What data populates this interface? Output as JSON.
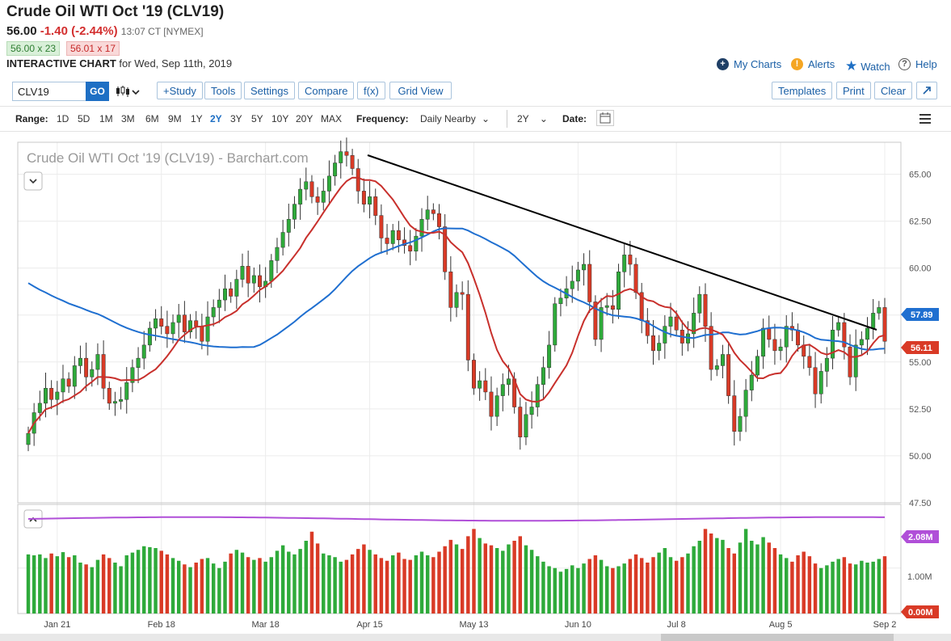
{
  "header": {
    "title": "Crude Oil WTI Oct '19 (CLV19)",
    "last": "56.00",
    "change": "-1.40 (-2.44%)",
    "time": "13:07 CT [NYMEX]",
    "bid": "56.00 x 23",
    "ask": "56.01 x 17",
    "subtitle_bold": "INTERACTIVE CHART",
    "subtitle_rest": "for Wed, Sep 11th, 2019"
  },
  "links": {
    "my_charts": "My Charts",
    "alerts": "Alerts",
    "watch": "Watch",
    "help": "Help"
  },
  "toolbar": {
    "symbol": "CLV19",
    "go": "GO",
    "study": "+Study",
    "tools": "Tools",
    "settings": "Settings",
    "compare": "Compare",
    "fx": "f(x)",
    "grid_view": "Grid View",
    "templates": "Templates",
    "print": "Print",
    "clear": "Clear"
  },
  "rangebar": {
    "range_label": "Range:",
    "ranges": [
      "1D",
      "5D",
      "1M",
      "3M",
      "6M",
      "9M",
      "1Y",
      "2Y",
      "3Y",
      "5Y",
      "10Y",
      "20Y",
      "MAX"
    ],
    "active_range": "2Y",
    "frequency_label": "Frequency:",
    "frequency": "Daily Nearby",
    "period": "2Y",
    "date_label": "Date:"
  },
  "colors": {
    "up": "#2eaa3a",
    "down": "#d93a26",
    "ma_short": "#c8302c",
    "ma_long": "#1f6fd0",
    "volume_ma": "#b04fd8",
    "trendline": "#000000",
    "accent": "#1e6fc4"
  },
  "chart_data": {
    "type": "candlestick",
    "title": "Crude Oil WTI Oct '19 (CLV19) - Barchart.com",
    "price_ticks": [
      "65.00",
      "62.50",
      "60.00",
      "57.50",
      "55.00",
      "52.50",
      "50.00",
      "47.50"
    ],
    "price_range": [
      47.5,
      66.7
    ],
    "volume_ticks": [
      "1.00M"
    ],
    "volume_range": [
      0,
      2.4
    ],
    "date_labels": [
      "Jan 21",
      "Feb 18",
      "Mar 18",
      "Apr 15",
      "May 13",
      "Jun 10",
      "Jul 8",
      "Aug 5",
      "Sep 2"
    ],
    "last_price": "56.11",
    "ma_long_value": "57.89",
    "volume_ma_value": "2.08M",
    "volume_last": "0.00M",
    "closes": [
      51.2,
      52.3,
      52.8,
      53.6,
      53.0,
      53.4,
      54.1,
      53.7,
      54.8,
      55.2,
      54.2,
      54.6,
      55.4,
      53.6,
      52.8,
      52.9,
      53.0,
      53.9,
      54.7,
      55.2,
      55.9,
      56.8,
      57.3,
      56.9,
      56.5,
      57.1,
      57.5,
      56.6,
      57.2,
      56.9,
      56.1,
      57.4,
      57.9,
      58.3,
      58.9,
      58.5,
      59.4,
      60.1,
      59.2,
      59.6,
      59.0,
      59.3,
      60.4,
      61.1,
      61.9,
      62.6,
      63.4,
      64.2,
      64.6,
      63.8,
      63.5,
      64.1,
      64.9,
      65.6,
      66.2,
      66.0,
      65.3,
      64.1,
      63.4,
      63.8,
      62.8,
      61.6,
      61.3,
      62.0,
      61.5,
      61.2,
      60.9,
      61.7,
      62.6,
      63.1,
      62.9,
      62.2,
      59.8,
      57.9,
      58.7,
      58.6,
      55.1,
      53.6,
      54.0,
      53.4,
      52.1,
      53.2,
      53.8,
      54.1,
      52.6,
      51.0,
      52.2,
      52.6,
      53.8,
      54.7,
      55.9,
      58.1,
      58.4,
      58.9,
      59.3,
      59.9,
      60.2,
      58.2,
      56.2,
      57.9,
      58.0,
      57.8,
      59.8,
      60.7,
      60.2,
      58.7,
      57.2,
      56.4,
      55.6,
      56.0,
      56.9,
      57.4,
      56.7,
      56.0,
      56.5,
      57.6,
      58.6,
      56.9,
      54.6,
      54.8,
      55.4,
      53.2,
      51.3,
      52.1,
      53.5,
      54.3,
      55.3,
      56.8,
      56.2,
      55.6,
      55.8,
      56.9,
      56.7,
      55.9,
      55.3,
      54.7,
      53.3,
      54.5,
      55.2,
      56.7,
      57.1,
      55.8,
      54.2,
      55.9,
      56.2,
      56.8,
      57.6,
      57.9,
      56.1
    ],
    "volumes": [
      1.3,
      1.28,
      1.3,
      1.22,
      1.32,
      1.26,
      1.35,
      1.24,
      1.28,
      1.12,
      1.08,
      1.02,
      1.18,
      1.3,
      1.22,
      1.12,
      1.04,
      1.28,
      1.34,
      1.4,
      1.48,
      1.46,
      1.44,
      1.38,
      1.3,
      1.22,
      1.16,
      1.08,
      1.02,
      1.12,
      1.2,
      1.22,
      1.1,
      1.0,
      1.14,
      1.32,
      1.4,
      1.34,
      1.24,
      1.18,
      1.22,
      1.14,
      1.24,
      1.38,
      1.5,
      1.36,
      1.3,
      1.42,
      1.6,
      1.8,
      1.54,
      1.32,
      1.28,
      1.24,
      1.14,
      1.18,
      1.3,
      1.42,
      1.52,
      1.4,
      1.3,
      1.22,
      1.16,
      1.28,
      1.34,
      1.2,
      1.18,
      1.28,
      1.36,
      1.28,
      1.24,
      1.36,
      1.48,
      1.62,
      1.52,
      1.42,
      1.7,
      1.86,
      1.66,
      1.54,
      1.5,
      1.44,
      1.38,
      1.52,
      1.6,
      1.7,
      1.5,
      1.4,
      1.26,
      1.14,
      1.04,
      1.0,
      0.92,
      0.98,
      1.06,
      1.0,
      1.1,
      1.2,
      1.28,
      1.18,
      1.04,
      1.0,
      1.04,
      1.1,
      1.2,
      1.3,
      1.22,
      1.12,
      1.24,
      1.34,
      1.44,
      1.24,
      1.16,
      1.24,
      1.32,
      1.48,
      1.6,
      1.86,
      1.76,
      1.66,
      1.62,
      1.44,
      1.32,
      1.56,
      1.86,
      1.6,
      1.52,
      1.68,
      1.56,
      1.44,
      1.3,
      1.22,
      1.14,
      1.28,
      1.36,
      1.26,
      1.1,
      1.0,
      1.06,
      1.14,
      1.2,
      1.24,
      1.1,
      1.08,
      1.16,
      1.12,
      1.14,
      1.2,
      1.26
    ]
  }
}
